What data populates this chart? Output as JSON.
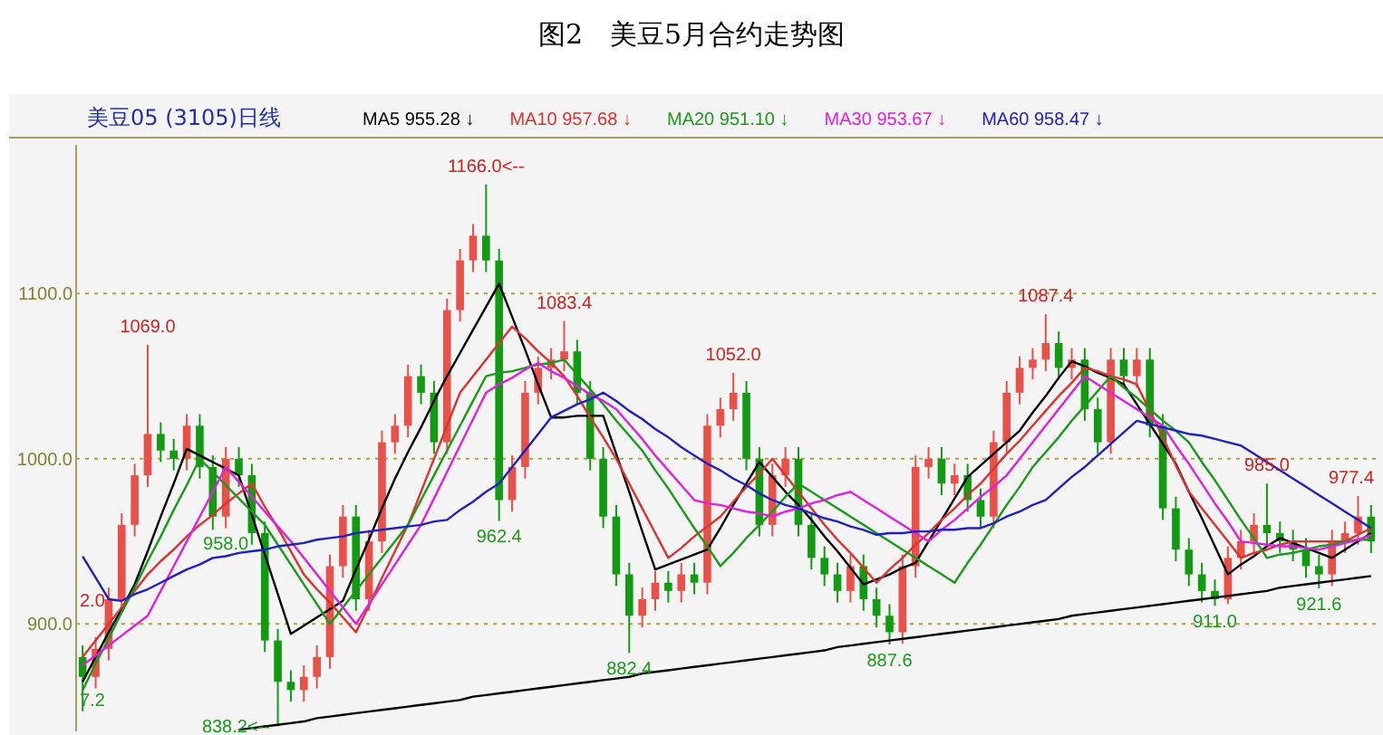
{
  "chart_data": {
    "type": "candlestick",
    "title": "图2　美豆5月合约走势图",
    "subtitle": "美豆05 (3105)日线",
    "categories": [
      null,
      null,
      null,
      null,
      null,
      null,
      null,
      null,
      null,
      null,
      null,
      null,
      null,
      null,
      null,
      null,
      null,
      null,
      null,
      null,
      null,
      null,
      null,
      null,
      null,
      null,
      null,
      null,
      null,
      null,
      null,
      null,
      null,
      null,
      null,
      null,
      null,
      null,
      null,
      null,
      null,
      null,
      null,
      null,
      null,
      null,
      null,
      null,
      null,
      null,
      null,
      null,
      null,
      null,
      null,
      null,
      null,
      null,
      null,
      null,
      null,
      null,
      null,
      null,
      null,
      null,
      null,
      null,
      null,
      null,
      null,
      null,
      null,
      null,
      null,
      null,
      null,
      null,
      null,
      null,
      null,
      null,
      null,
      null,
      null,
      null,
      null,
      null,
      null,
      null,
      null,
      null,
      null,
      null,
      null,
      null,
      null,
      null,
      null,
      null
    ],
    "ohlc": [
      [
        880,
        887,
        847.2,
        868
      ],
      [
        868,
        892,
        861,
        885
      ],
      [
        885,
        922,
        878,
        915
      ],
      [
        915,
        967,
        908,
        960
      ],
      [
        960,
        997,
        953,
        990
      ],
      [
        990,
        1069,
        983,
        1015
      ],
      [
        1015,
        1022,
        998,
        1005
      ],
      [
        1005,
        1012,
        993,
        1000
      ],
      [
        1000,
        1027,
        993,
        1020
      ],
      [
        1020,
        1027,
        988,
        995
      ],
      [
        995,
        1002,
        957,
        965
      ],
      [
        965,
        1007,
        958,
        1000
      ],
      [
        1000,
        1007,
        983,
        990
      ],
      [
        990,
        997,
        948,
        955
      ],
      [
        955,
        962,
        883,
        890
      ],
      [
        890,
        897,
        838.2,
        865
      ],
      [
        865,
        872,
        853,
        860
      ],
      [
        860,
        875,
        853,
        868
      ],
      [
        868,
        887,
        861,
        880
      ],
      [
        880,
        942,
        873,
        935
      ],
      [
        935,
        972,
        928,
        965
      ],
      [
        965,
        972,
        908,
        915
      ],
      [
        915,
        957,
        908,
        950
      ],
      [
        950,
        1017,
        943,
        1010
      ],
      [
        1010,
        1027,
        1003,
        1020
      ],
      [
        1020,
        1057,
        1013,
        1050
      ],
      [
        1050,
        1057,
        1033,
        1040
      ],
      [
        1040,
        1047,
        1003,
        1010
      ],
      [
        1010,
        1097,
        1003,
        1090
      ],
      [
        1090,
        1127,
        1083,
        1120
      ],
      [
        1120,
        1142,
        1113,
        1135
      ],
      [
        1135,
        1166,
        1113,
        1120
      ],
      [
        1120,
        1127,
        962.4,
        975
      ],
      [
        975,
        1002,
        968,
        995
      ],
      [
        995,
        1047,
        988,
        1040
      ],
      [
        1040,
        1062,
        1033,
        1055
      ],
      [
        1055,
        1067,
        1048,
        1060
      ],
      [
        1060,
        1083.4,
        1053,
        1065
      ],
      [
        1065,
        1072,
        1033,
        1040
      ],
      [
        1040,
        1047,
        993,
        1000
      ],
      [
        1000,
        1007,
        958,
        965
      ],
      [
        965,
        972,
        923,
        930
      ],
      [
        930,
        937,
        882.4,
        905
      ],
      [
        905,
        922,
        898,
        915
      ],
      [
        915,
        932,
        908,
        925
      ],
      [
        925,
        932,
        913,
        920
      ],
      [
        920,
        937,
        913,
        930
      ],
      [
        930,
        937,
        918,
        925
      ],
      [
        925,
        1027,
        918,
        1020
      ],
      [
        1020,
        1037,
        1013,
        1030
      ],
      [
        1030,
        1052,
        1023,
        1040
      ],
      [
        1040,
        1047,
        993,
        1000
      ],
      [
        1000,
        1007,
        953,
        960
      ],
      [
        960,
        997,
        953,
        990
      ],
      [
        990,
        1007,
        983,
        1000
      ],
      [
        1000,
        1007,
        953,
        960
      ],
      [
        960,
        967,
        933,
        940
      ],
      [
        940,
        947,
        923,
        930
      ],
      [
        930,
        937,
        913,
        920
      ],
      [
        920,
        942,
        913,
        935
      ],
      [
        935,
        942,
        908,
        915
      ],
      [
        915,
        922,
        898,
        905
      ],
      [
        905,
        912,
        887.6,
        895
      ],
      [
        895,
        942,
        888,
        935
      ],
      [
        935,
        1002,
        928,
        995
      ],
      [
        995,
        1007,
        988,
        1000
      ],
      [
        1000,
        1007,
        978,
        985
      ],
      [
        985,
        997,
        978,
        990
      ],
      [
        990,
        997,
        968,
        975
      ],
      [
        975,
        982,
        958,
        965
      ],
      [
        965,
        1017,
        958,
        1010
      ],
      [
        1010,
        1047,
        1003,
        1040
      ],
      [
        1040,
        1062,
        1033,
        1055
      ],
      [
        1055,
        1067,
        1048,
        1060
      ],
      [
        1060,
        1087.4,
        1053,
        1070
      ],
      [
        1070,
        1077,
        1048,
        1055
      ],
      [
        1055,
        1067,
        1048,
        1060
      ],
      [
        1060,
        1067,
        1023,
        1030
      ],
      [
        1030,
        1037,
        1003,
        1010
      ],
      [
        1010,
        1067,
        1003,
        1060
      ],
      [
        1060,
        1067,
        1043,
        1050
      ],
      [
        1050,
        1067,
        1043,
        1060
      ],
      [
        1060,
        1067,
        1013,
        1020
      ],
      [
        1020,
        1027,
        963,
        970
      ],
      [
        970,
        977,
        938,
        945
      ],
      [
        945,
        952,
        923,
        930
      ],
      [
        930,
        937,
        913,
        920
      ],
      [
        920,
        927,
        911,
        915
      ],
      [
        915,
        947,
        912,
        940
      ],
      [
        940,
        957,
        933,
        950
      ],
      [
        950,
        967,
        943,
        960
      ],
      [
        960,
        985,
        948,
        955
      ],
      [
        955,
        962,
        943,
        950
      ],
      [
        950,
        957,
        938,
        945
      ],
      [
        945,
        952,
        928,
        935
      ],
      [
        935,
        942,
        921.6,
        930
      ],
      [
        930,
        957,
        923,
        950
      ],
      [
        950,
        962,
        943,
        955
      ],
      [
        955,
        977.4,
        948,
        965
      ],
      [
        965,
        972,
        943,
        950
      ]
    ],
    "series": [
      {
        "type": "line",
        "name": "MA5 955.28 ↓",
        "color": "#000000",
        "values": [
          865,
          880,
          895,
          909,
          924,
          944,
          965,
          985,
          1006,
          1002,
          998,
          994,
          990,
          966,
          942,
          918,
          894,
          899,
          904,
          909,
          914,
          933,
          951,
          970,
          988,
          1004,
          1019,
          1035,
          1050,
          1064,
          1078,
          1092,
          1106,
          1086,
          1066,
          1045,
          1025,
          1025,
          1026,
          1026,
          1026,
          1003,
          980,
          956,
          933,
          936,
          939,
          942,
          945,
          958,
          972,
          985,
          998,
          989,
          980,
          972,
          963,
          953,
          944,
          934,
          924,
          927,
          930,
          934,
          937,
          950,
          963,
          976,
          989,
          996,
          1003,
          1010,
          1017,
          1028,
          1038,
          1049,
          1059,
          1056,
          1052,
          1049,
          1045,
          1033,
          1021,
          1009,
          997,
          980,
          964,
          947,
          930,
          936,
          941,
          947,
          952,
          949,
          946,
          943,
          940,
          945,
          950,
          955
        ]
      },
      {
        "type": "line",
        "name": "MA10 957.68 ↓",
        "color": "#e03030",
        "values": [
          880,
          890,
          900,
          910,
          920,
          930,
          938,
          945,
          953,
          960,
          966,
          973,
          979,
          985,
          971,
          958,
          944,
          930,
          921,
          913,
          904,
          895,
          911,
          928,
          944,
          960,
          980,
          1000,
          1020,
          1040,
          1050,
          1060,
          1070,
          1080,
          1073,
          1065,
          1058,
          1050,
          1038,
          1025,
          1013,
          1000,
          985,
          970,
          955,
          940,
          946,
          953,
          959,
          965,
          974,
          983,
          991,
          1000,
          990,
          980,
          970,
          960,
          951,
          943,
          934,
          925,
          933,
          940,
          948,
          955,
          963,
          970,
          978,
          985,
          994,
          1003,
          1011,
          1020,
          1029,
          1038,
          1046,
          1055,
          1053,
          1050,
          1048,
          1045,
          1029,
          1013,
          996,
          980,
          970,
          960,
          950,
          940,
          943,
          945,
          948,
          950,
          950,
          950,
          950,
          950,
          954,
          958
        ]
      },
      {
        "type": "line",
        "name": "MA20 951.10 ↓",
        "color": "#1a9a1a",
        "values": [
          860,
          876,
          891,
          907,
          922,
          938,
          953,
          969,
          984,
          1000,
          992,
          984,
          976,
          968,
          960,
          948,
          936,
          924,
          912,
          900,
          910,
          920,
          930,
          940,
          950,
          960,
          975,
          990,
          1005,
          1020,
          1035,
          1050,
          1052,
          1053,
          1055,
          1057,
          1058,
          1060,
          1051,
          1042,
          1033,
          1023,
          1014,
          1005,
          993,
          982,
          970,
          958,
          947,
          935,
          943,
          952,
          960,
          968,
          977,
          985,
          980,
          975,
          970,
          965,
          960,
          955,
          950,
          945,
          940,
          935,
          930,
          925,
          937,
          948,
          960,
          972,
          983,
          995,
          1004,
          1013,
          1023,
          1032,
          1041,
          1050,
          1043,
          1037,
          1030,
          1023,
          1017,
          1010,
          998,
          987,
          975,
          963,
          952,
          940,
          942,
          943,
          945,
          947,
          948,
          950,
          951,
          951
        ]
      },
      {
        "type": "line",
        "name": "MA30 953.67 ↓",
        "color": "#e020e0",
        "values": [
          875,
          881,
          887,
          893,
          899,
          905,
          920,
          935,
          950,
          965,
          980,
          995,
          986,
          977,
          968,
          959,
          950,
          940,
          930,
          920,
          910,
          900,
          912,
          924,
          936,
          948,
          960,
          976,
          992,
          1008,
          1024,
          1040,
          1045,
          1049,
          1054,
          1058,
          1053,
          1049,
          1044,
          1039,
          1035,
          1030,
          1021,
          1012,
          1002,
          993,
          984,
          975,
          973,
          972,
          970,
          968,
          967,
          965,
          968,
          970,
          973,
          975,
          978,
          980,
          975,
          970,
          965,
          960,
          955,
          950,
          957,
          963,
          970,
          977,
          983,
          990,
          1000,
          1010,
          1020,
          1030,
          1040,
          1050,
          1045,
          1040,
          1035,
          1030,
          1025,
          1020,
          1008,
          997,
          985,
          973,
          962,
          950,
          949,
          948,
          947,
          947,
          946,
          945,
          947,
          949,
          951,
          954
        ]
      },
      {
        "type": "line",
        "name": "MA60 958.47 ↓",
        "color": "#2020c0",
        "values": [
          941,
          928,
          915,
          914,
          918,
          921,
          925,
          929,
          933,
          936,
          940,
          941,
          943,
          944,
          945,
          947,
          948,
          949,
          951,
          952,
          953,
          955,
          956,
          957,
          958,
          959,
          960,
          962,
          963,
          969,
          974,
          980,
          985,
          995,
          1005,
          1015,
          1025,
          1029,
          1033,
          1036,
          1040,
          1035,
          1029,
          1024,
          1018,
          1013,
          1007,
          1002,
          997,
          993,
          988,
          984,
          979,
          975,
          972,
          970,
          967,
          964,
          962,
          959,
          957,
          954,
          955,
          955,
          956,
          956,
          957,
          957,
          958,
          958,
          961,
          965,
          968,
          972,
          975,
          982,
          989,
          995,
          1002,
          1009,
          1016,
          1023,
          1021,
          1019,
          1017,
          1015,
          1014,
          1012,
          1010,
          1008,
          1003,
          998,
          993,
          988,
          983,
          978,
          973,
          968,
          963,
          958
        ]
      },
      {
        "type": "line",
        "color": "#000000",
        "values": [
          null,
          null,
          null,
          null,
          null,
          null,
          null,
          null,
          null,
          null,
          null,
          null,
          836,
          837,
          838,
          839,
          840,
          841,
          843,
          844,
          845,
          846,
          847,
          848,
          849,
          850,
          851,
          852,
          853,
          854,
          856,
          857,
          858,
          859,
          860,
          861,
          862,
          863,
          864,
          865,
          866,
          867,
          868,
          870,
          871,
          872,
          873,
          874,
          875,
          876,
          877,
          878,
          879,
          880,
          881,
          882,
          883,
          884,
          886,
          887,
          888,
          889,
          890,
          891,
          892,
          893,
          894,
          895,
          896,
          897,
          898,
          899,
          900,
          901,
          902,
          903,
          905,
          906,
          907,
          908,
          909,
          910,
          911,
          912,
          913,
          914,
          915,
          916,
          917,
          918,
          919,
          920,
          922,
          923,
          924,
          925,
          926,
          927,
          928,
          929
        ]
      }
    ],
    "annotations": [
      {
        "text": "1069.0",
        "y": 1069
      },
      {
        "text": "838.2<--",
        "y": 838.2
      },
      {
        "text": "1166.0<--",
        "y": 1166
      },
      {
        "text": "962.4",
        "y": 962.4
      },
      {
        "text": "1083.4",
        "y": 1083.4
      },
      {
        "text": "882.4",
        "y": 882.4
      },
      {
        "text": "1052.0",
        "y": 1052
      },
      {
        "text": "887.6",
        "y": 887.6
      },
      {
        "text": "958.0",
        "y": 958
      },
      {
        "text": "1087.4",
        "y": 1087.4
      },
      {
        "text": "911.0",
        "y": 911
      },
      {
        "text": "985.0",
        "y": 985
      },
      {
        "text": "921.6",
        "y": 921.6
      },
      {
        "text": "977.4",
        "y": 977.4
      },
      "2.0",
      "7.2"
    ],
    "ylim": [
      835,
      1190
    ],
    "yticks": [
      {
        "value": 900,
        "label": "900.0"
      },
      {
        "value": 1000,
        "label": "1000.0"
      },
      {
        "value": 1100,
        "label": "1100.0"
      }
    ],
    "tick_labels": "y",
    "grid": "y",
    "marker": "none"
  }
}
